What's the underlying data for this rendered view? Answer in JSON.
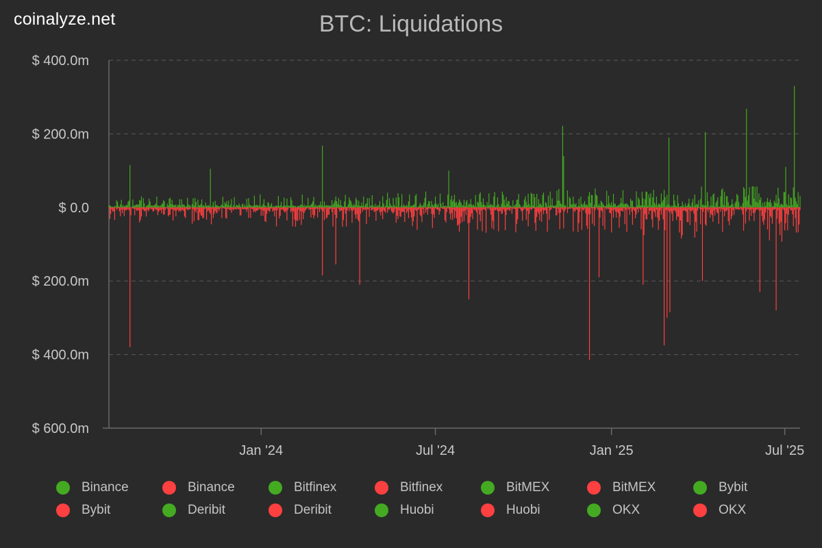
{
  "watermark": "coinalyze.net",
  "chart_data": {
    "type": "bar",
    "title": "BTC: Liquidations",
    "xlabel": "",
    "ylabel": "",
    "ylim": [
      -600,
      400
    ],
    "y_ticks": [
      {
        "value": 400,
        "label": "$ 400.0m"
      },
      {
        "value": 200,
        "label": "$ 200.0m"
      },
      {
        "value": 0,
        "label": "$ 0.0"
      },
      {
        "value": -200,
        "label": "$ 200.0m"
      },
      {
        "value": -400,
        "label": "$ 400.0m"
      },
      {
        "value": -600,
        "label": "$ 600.0m"
      }
    ],
    "x_range": [
      "2023-07-26",
      "2025-07-17"
    ],
    "x_ticks": [
      {
        "date": "2024-01-01",
        "label": "Jan '24"
      },
      {
        "date": "2024-07-01",
        "label": "Jul '24"
      },
      {
        "date": "2025-01-01",
        "label": "Jan '25"
      },
      {
        "date": "2025-07-01",
        "label": "Jul '25"
      }
    ],
    "colors": {
      "long": "#44aa22",
      "short": "#ff4040",
      "grid": "#5a5a5a",
      "axis": "#6a6a6a"
    },
    "notable_long_liquidations_usd_m": [
      {
        "date": "2023-08-17",
        "value": 115
      },
      {
        "date": "2023-11-09",
        "value": 105
      },
      {
        "date": "2024-03-05",
        "value": 168
      },
      {
        "date": "2024-07-15",
        "value": 100
      },
      {
        "date": "2024-11-11",
        "value": 222
      },
      {
        "date": "2024-11-12",
        "value": 140
      },
      {
        "date": "2025-03-02",
        "value": 190
      },
      {
        "date": "2025-04-09",
        "value": 205
      },
      {
        "date": "2025-05-22",
        "value": 268
      },
      {
        "date": "2025-07-02",
        "value": 110
      },
      {
        "date": "2025-07-11",
        "value": 330
      }
    ],
    "notable_short_liquidations_usd_m": [
      {
        "date": "2023-08-17",
        "value": -380
      },
      {
        "date": "2024-03-05",
        "value": -185
      },
      {
        "date": "2024-03-19",
        "value": -155
      },
      {
        "date": "2024-04-13",
        "value": -210
      },
      {
        "date": "2024-08-05",
        "value": -250
      },
      {
        "date": "2024-12-09",
        "value": -415
      },
      {
        "date": "2024-12-19",
        "value": -190
      },
      {
        "date": "2025-02-03",
        "value": -210
      },
      {
        "date": "2025-02-25",
        "value": -375
      },
      {
        "date": "2025-02-28",
        "value": -300
      },
      {
        "date": "2025-03-03",
        "value": -285
      },
      {
        "date": "2025-04-06",
        "value": -200
      },
      {
        "date": "2025-06-05",
        "value": -230
      },
      {
        "date": "2025-06-22",
        "value": -280
      }
    ],
    "legend": [
      {
        "exchange": "Binance",
        "side": "long"
      },
      {
        "exchange": "Binance",
        "side": "short"
      },
      {
        "exchange": "Bitfinex",
        "side": "long"
      },
      {
        "exchange": "Bitfinex",
        "side": "short"
      },
      {
        "exchange": "BitMEX",
        "side": "long"
      },
      {
        "exchange": "BitMEX",
        "side": "short"
      },
      {
        "exchange": "Bybit",
        "side": "long"
      },
      {
        "exchange": "Bybit",
        "side": "short"
      },
      {
        "exchange": "Deribit",
        "side": "long"
      },
      {
        "exchange": "Deribit",
        "side": "short"
      },
      {
        "exchange": "Huobi",
        "side": "long"
      },
      {
        "exchange": "Huobi",
        "side": "short"
      },
      {
        "exchange": "OKX",
        "side": "long"
      },
      {
        "exchange": "OKX",
        "side": "short"
      }
    ]
  }
}
